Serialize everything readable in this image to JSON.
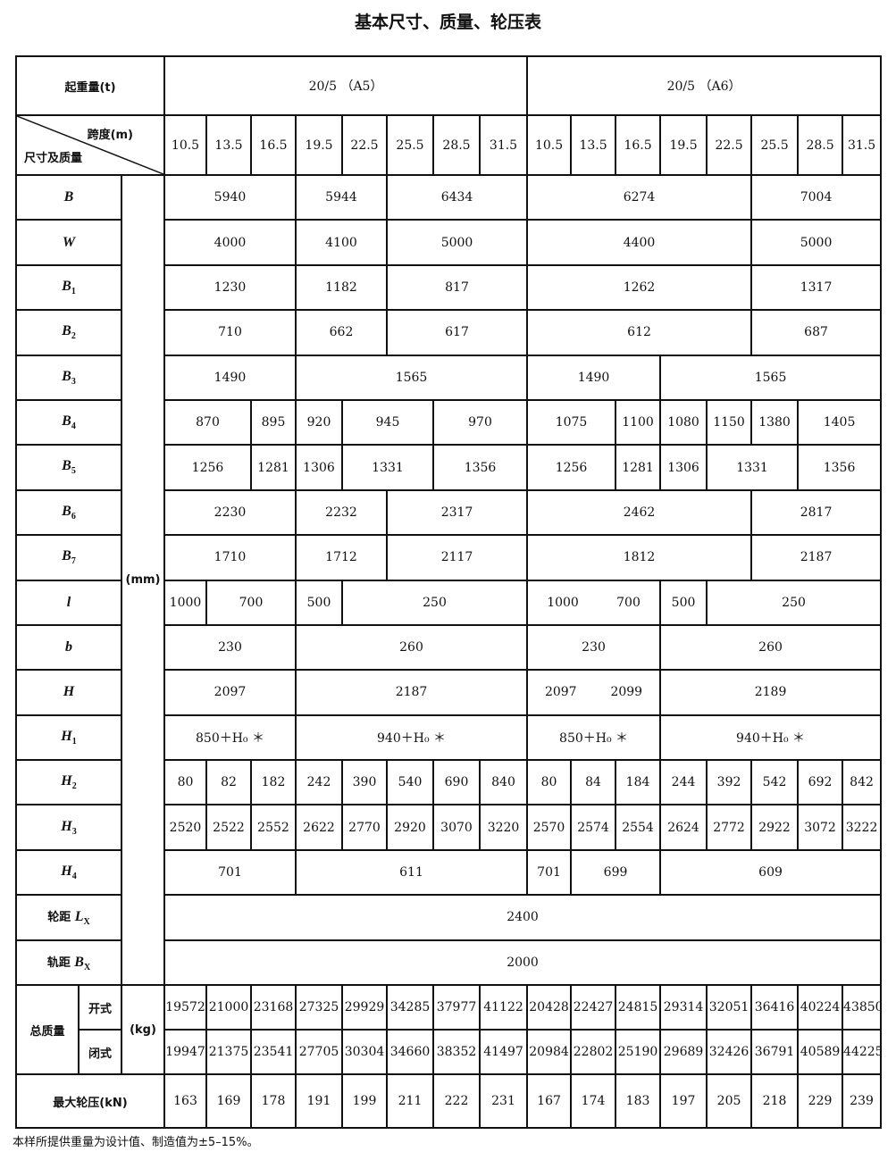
{
  "title": "基本尺寸、质量、轮压表",
  "header": {
    "capacity_label": "起重量(t)",
    "groups": [
      "20/5 （A5）",
      "20/5 （A6）"
    ],
    "span_label": "跨度(m)",
    "dim_label": "尺寸及质量",
    "spans": [
      "10.5",
      "13.5",
      "16.5",
      "19.5",
      "22.5",
      "25.5",
      "28.5",
      "31.5",
      "10.5",
      "13.5",
      "16.5",
      "19.5",
      "22.5",
      "25.5",
      "28.5",
      "31.5"
    ]
  },
  "units": {
    "mm": "(mm)",
    "kg": "(kg)"
  },
  "rows": [
    {
      "sym": "B",
      "sub": "",
      "cells": [
        {
          "v": "5940",
          "s": 3
        },
        {
          "v": "5944",
          "s": 2
        },
        {
          "v": "6434",
          "s": 3
        },
        {
          "v": "6274",
          "s": 5
        },
        {
          "v": "7004",
          "s": 3
        }
      ]
    },
    {
      "sym": "W",
      "sub": "",
      "cells": [
        {
          "v": "4000",
          "s": 3
        },
        {
          "v": "4100",
          "s": 2
        },
        {
          "v": "5000",
          "s": 3
        },
        {
          "v": "4400",
          "s": 5
        },
        {
          "v": "5000",
          "s": 3
        }
      ]
    },
    {
      "sym": "B",
      "sub": "1",
      "cells": [
        {
          "v": "1230",
          "s": 3
        },
        {
          "v": "1182",
          "s": 2
        },
        {
          "v": "817",
          "s": 3
        },
        {
          "v": "1262",
          "s": 5
        },
        {
          "v": "1317",
          "s": 3
        }
      ]
    },
    {
      "sym": "B",
      "sub": "2",
      "cells": [
        {
          "v": "710",
          "s": 3
        },
        {
          "v": "662",
          "s": 2
        },
        {
          "v": "617",
          "s": 3
        },
        {
          "v": "612",
          "s": 5
        },
        {
          "v": "687",
          "s": 3
        }
      ]
    },
    {
      "sym": "B",
      "sub": "3",
      "cells": [
        {
          "v": "1490",
          "s": 3
        },
        {
          "v": "1565",
          "s": 5
        },
        {
          "v": "1490",
          "s": 3
        },
        {
          "v": "1565",
          "s": 5
        }
      ]
    },
    {
      "sym": "B",
      "sub": "4",
      "cells": [
        {
          "v": "870",
          "s": 2
        },
        {
          "v": "895",
          "s": 1
        },
        {
          "v": "920",
          "s": 1
        },
        {
          "v": "945",
          "s": 2
        },
        {
          "v": "970",
          "s": 2
        },
        {
          "v": "1075",
          "s": 2
        },
        {
          "v": "1100",
          "s": 1
        },
        {
          "v": "1080",
          "s": 1
        },
        {
          "v": "1150",
          "s": 1
        },
        {
          "v": "1380",
          "s": 1
        },
        {
          "v": "1405",
          "s": 2
        }
      ]
    },
    {
      "sym": "B",
      "sub": "5",
      "cells": [
        {
          "v": "1256",
          "s": 2
        },
        {
          "v": "1281",
          "s": 1
        },
        {
          "v": "1306",
          "s": 1
        },
        {
          "v": "1331",
          "s": 2
        },
        {
          "v": "1356",
          "s": 2
        },
        {
          "v": "1256",
          "s": 2
        },
        {
          "v": "1281",
          "s": 1
        },
        {
          "v": "1306",
          "s": 1
        },
        {
          "v": "1331",
          "s": 2
        },
        {
          "v": "1356",
          "s": 2
        }
      ]
    },
    {
      "sym": "B",
      "sub": "6",
      "cells": [
        {
          "v": "2230",
          "s": 3
        },
        {
          "v": "2232",
          "s": 2
        },
        {
          "v": "2317",
          "s": 3
        },
        {
          "v": "2462",
          "s": 5
        },
        {
          "v": "2817",
          "s": 3
        }
      ]
    },
    {
      "sym": "B",
      "sub": "7",
      "cells": [
        {
          "v": "1710",
          "s": 3
        },
        {
          "v": "1712",
          "s": 2
        },
        {
          "v": "2117",
          "s": 3
        },
        {
          "v": "1812",
          "s": 5
        },
        {
          "v": "2187",
          "s": 3
        }
      ]
    },
    {
      "sym": "l",
      "sub": "",
      "cells": [
        {
          "v": "1000",
          "s": 1
        },
        {
          "v": "700",
          "s": 2
        },
        {
          "v": "500",
          "s": 1
        },
        {
          "v": "250",
          "s": 4
        },
        {
          "v": [
            "1000",
            "700"
          ],
          "s": 3
        },
        {
          "v": "500",
          "s": 1
        },
        {
          "v": "250",
          "s": 4
        }
      ]
    },
    {
      "sym": "b",
      "sub": "",
      "cells": [
        {
          "v": "230",
          "s": 3
        },
        {
          "v": "260",
          "s": 5
        },
        {
          "v": "230",
          "s": 3
        },
        {
          "v": "260",
          "s": 5
        }
      ]
    },
    {
      "sym": "H",
      "sub": "",
      "cells": [
        {
          "v": "2097",
          "s": 3
        },
        {
          "v": "2187",
          "s": 5
        },
        {
          "v": [
            "2097",
            "2099"
          ],
          "s": 3
        },
        {
          "v": "2189",
          "s": 5
        }
      ]
    },
    {
      "sym": "H",
      "sub": "1",
      "cells": [
        {
          "v": "850＋H₀ ＊",
          "s": 3
        },
        {
          "v": "940＋H₀ ＊",
          "s": 5
        },
        {
          "v": "850＋H₀ ＊",
          "s": 3
        },
        {
          "v": "940＋H₀ ＊",
          "s": 5
        }
      ]
    },
    {
      "sym": "H",
      "sub": "2",
      "cells": [
        {
          "v": "80",
          "s": 1
        },
        {
          "v": "82",
          "s": 1
        },
        {
          "v": "182",
          "s": 1
        },
        {
          "v": "242",
          "s": 1
        },
        {
          "v": "390",
          "s": 1
        },
        {
          "v": "540",
          "s": 1
        },
        {
          "v": "690",
          "s": 1
        },
        {
          "v": "840",
          "s": 1
        },
        {
          "v": "80",
          "s": 1
        },
        {
          "v": "84",
          "s": 1
        },
        {
          "v": "184",
          "s": 1
        },
        {
          "v": "244",
          "s": 1
        },
        {
          "v": "392",
          "s": 1
        },
        {
          "v": "542",
          "s": 1
        },
        {
          "v": "692",
          "s": 1
        },
        {
          "v": "842",
          "s": 1
        }
      ]
    },
    {
      "sym": "H",
      "sub": "3",
      "cells": [
        {
          "v": "2520",
          "s": 1
        },
        {
          "v": "2522",
          "s": 1
        },
        {
          "v": "2552",
          "s": 1
        },
        {
          "v": "2622",
          "s": 1
        },
        {
          "v": "2770",
          "s": 1
        },
        {
          "v": "2920",
          "s": 1
        },
        {
          "v": "3070",
          "s": 1
        },
        {
          "v": "3220",
          "s": 1
        },
        {
          "v": "2570",
          "s": 1
        },
        {
          "v": "2574",
          "s": 1
        },
        {
          "v": "2554",
          "s": 1
        },
        {
          "v": "2624",
          "s": 1
        },
        {
          "v": "2772",
          "s": 1
        },
        {
          "v": "2922",
          "s": 1
        },
        {
          "v": "3072",
          "s": 1
        },
        {
          "v": "3222",
          "s": 1
        }
      ]
    },
    {
      "sym": "H",
      "sub": "4",
      "cells": [
        {
          "v": "701",
          "s": 3
        },
        {
          "v": "611",
          "s": 5
        },
        {
          "v": "701",
          "s": 1
        },
        {
          "v": "699",
          "s": 2
        },
        {
          "v": "609",
          "s": 5
        }
      ]
    },
    {
      "prefix": "轮距",
      "sym": "L",
      "sub": "X",
      "cells": [
        {
          "v": "2400",
          "s": 16
        }
      ]
    },
    {
      "prefix": "轨距",
      "sym": "B",
      "sub": "X",
      "cells": [
        {
          "v": "2000",
          "s": 16
        }
      ]
    }
  ],
  "mass": {
    "label": "总质量",
    "open_label": "开式",
    "closed_label": "闭式",
    "open": [
      "19572",
      "21000",
      "23168",
      "27325",
      "29929",
      "34285",
      "37977",
      "41122",
      "20428",
      "22427",
      "24815",
      "29314",
      "32051",
      "36416",
      "40224",
      "43850"
    ],
    "closed": [
      "19947",
      "21375",
      "23541",
      "27705",
      "30304",
      "34660",
      "38352",
      "41497",
      "20984",
      "22802",
      "25190",
      "29689",
      "32426",
      "36791",
      "40589",
      "44225"
    ]
  },
  "wheel": {
    "label": "最大轮压(kN)",
    "values": [
      "163",
      "169",
      "178",
      "191",
      "199",
      "211",
      "222",
      "231",
      "167",
      "174",
      "183",
      "197",
      "205",
      "218",
      "229",
      "239"
    ]
  },
  "footnote": "本样所提供重量为设计值、制造值为±5–15%。"
}
